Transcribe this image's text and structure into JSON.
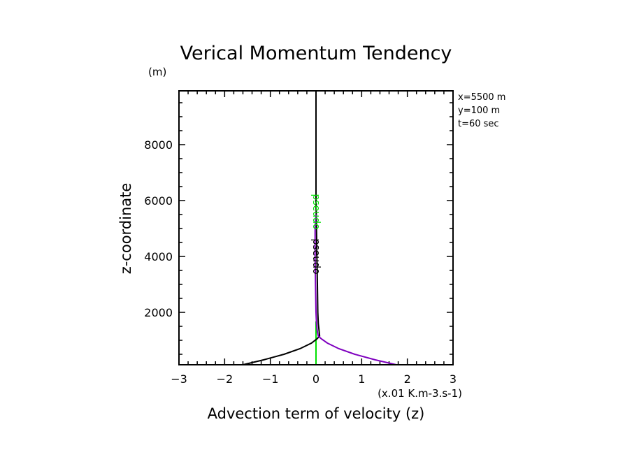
{
  "chart_data": {
    "type": "line",
    "title": "Verical Momentum Tendency",
    "xlabel": "Advection term of velocity (z)",
    "xunits": "(x.01 K.m-3.s-1)",
    "ylabel": "z-coordinate",
    "yunits": "(m)",
    "xlim": [
      -3,
      3
    ],
    "ylim": [
      125,
      9925
    ],
    "xticks": [
      -3,
      -2,
      -1,
      0,
      1,
      2,
      3
    ],
    "xtick_labels": [
      "−3",
      "−2",
      "−1",
      "0",
      "1",
      "2",
      "3"
    ],
    "x_minor_step": 0.2,
    "yticks": [
      2000,
      4000,
      6000,
      8000
    ],
    "ytick_labels": [
      "2000",
      "4000",
      "6000",
      "8000"
    ],
    "y_minor_step": 500,
    "grid": false,
    "info_text": [
      "x=5500 m",
      "y=100 m",
      "t=60 sec"
    ],
    "series": [
      {
        "name": "black",
        "color": "#000000",
        "z": [
          125,
          300,
          500,
          700,
          900,
          1050,
          1150,
          1300,
          1600,
          2000,
          3000,
          4000,
          5000,
          6000,
          7000,
          8000,
          9925
        ],
        "values": [
          -1.6,
          -1.15,
          -0.7,
          -0.35,
          -0.1,
          0.02,
          0.08,
          0.07,
          0.05,
          0.04,
          0.03,
          0.02,
          0.01,
          0.0,
          0.0,
          0.0,
          0.0
        ]
      },
      {
        "name": "purple",
        "color": "#7f00bf",
        "z": [
          125,
          300,
          500,
          700,
          900,
          1050,
          1150,
          1300,
          1600,
          2000,
          3000,
          4000,
          5000,
          5500
        ],
        "values": [
          1.76,
          1.3,
          0.85,
          0.5,
          0.25,
          0.12,
          0.05,
          0.03,
          0.01,
          0.0,
          -0.01,
          -0.02,
          -0.02,
          0.0
        ]
      },
      {
        "name": "green",
        "color": "#00e000",
        "z": [
          125,
          1675
        ],
        "values": [
          0.0,
          0.0
        ]
      }
    ],
    "annotations": [
      {
        "text": "pseudo",
        "z": 4000,
        "x": 0,
        "rotation": 90,
        "color": "#000000"
      },
      {
        "text": "pseudo",
        "z": 5600,
        "x": 0,
        "rotation": 90,
        "color": "#00e000"
      }
    ]
  }
}
